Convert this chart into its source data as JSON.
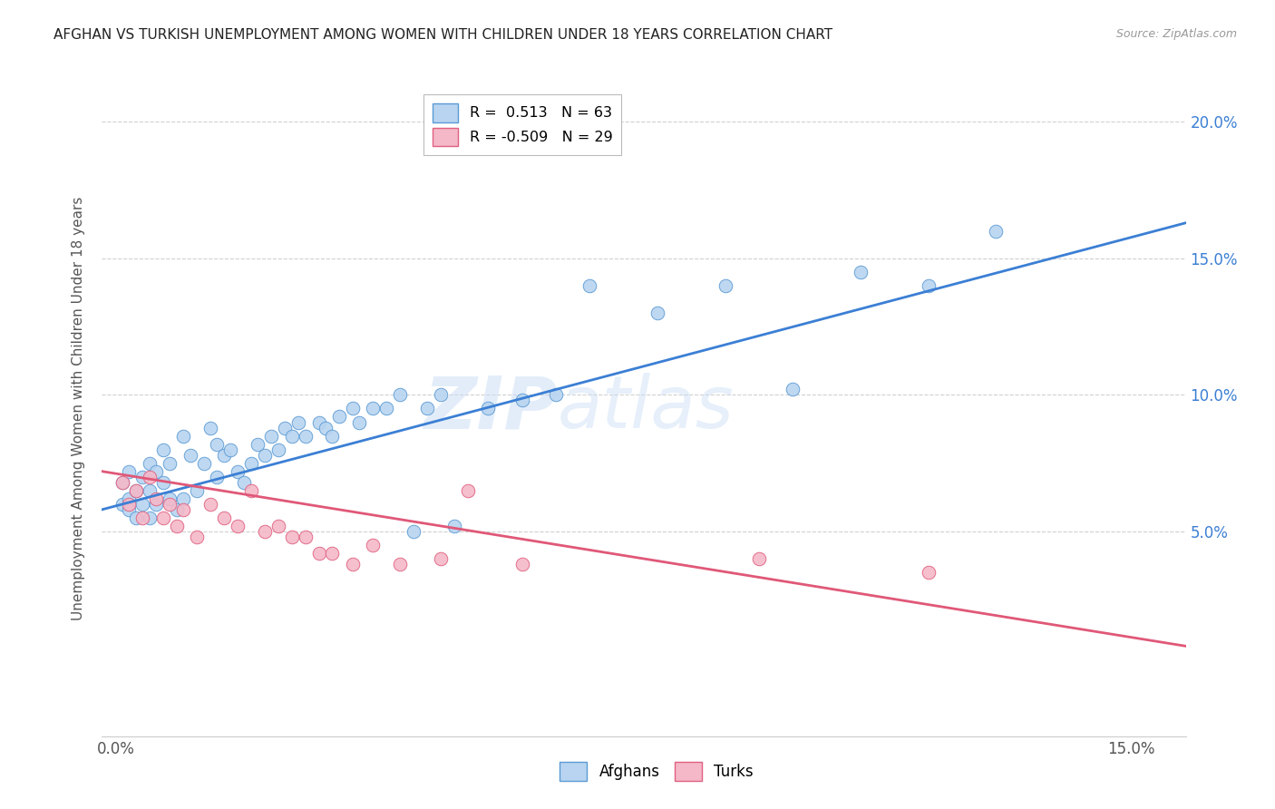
{
  "title": "AFGHAN VS TURKISH UNEMPLOYMENT AMONG WOMEN WITH CHILDREN UNDER 18 YEARS CORRELATION CHART",
  "source": "Source: ZipAtlas.com",
  "ylabel": "Unemployment Among Women with Children Under 18 years",
  "xlim": [
    -0.002,
    0.158
  ],
  "ylim": [
    -0.025,
    0.215
  ],
  "ytick_positions": [
    0.05,
    0.1,
    0.15,
    0.2
  ],
  "ytick_labels": [
    "5.0%",
    "10.0%",
    "15.0%",
    "20.0%"
  ],
  "xtick_positions": [
    0.0,
    0.15
  ],
  "xtick_labels": [
    "0.0%",
    "15.0%"
  ],
  "watermark_line1": "ZIP",
  "watermark_line2": "atlas",
  "legend_r_afghan": "R =  0.513",
  "legend_n_afghan": "N = 63",
  "legend_r_turk": "R = -0.509",
  "legend_n_turk": "N = 29",
  "afghan_color": "#b8d4f0",
  "afghan_edge_color": "#5b9bd5",
  "afghan_line_color": "#3b7fd4",
  "turk_color": "#f4b8c8",
  "turk_edge_color": "#e06080",
  "turk_line_color": "#e05878",
  "background_color": "#ffffff",
  "grid_color": "#d0d0d0",
  "afghan_x": [
    0.001,
    0.001,
    0.002,
    0.002,
    0.002,
    0.003,
    0.003,
    0.004,
    0.004,
    0.005,
    0.005,
    0.005,
    0.006,
    0.006,
    0.007,
    0.007,
    0.008,
    0.008,
    0.009,
    0.01,
    0.01,
    0.011,
    0.012,
    0.013,
    0.014,
    0.015,
    0.015,
    0.016,
    0.017,
    0.018,
    0.019,
    0.02,
    0.021,
    0.022,
    0.023,
    0.024,
    0.025,
    0.026,
    0.027,
    0.028,
    0.03,
    0.031,
    0.032,
    0.033,
    0.035,
    0.036,
    0.038,
    0.04,
    0.042,
    0.044,
    0.046,
    0.048,
    0.05,
    0.055,
    0.06,
    0.065,
    0.07,
    0.08,
    0.09,
    0.1,
    0.11,
    0.12,
    0.13
  ],
  "afghan_y": [
    0.06,
    0.068,
    0.062,
    0.058,
    0.072,
    0.065,
    0.055,
    0.07,
    0.06,
    0.075,
    0.065,
    0.055,
    0.072,
    0.06,
    0.08,
    0.068,
    0.075,
    0.062,
    0.058,
    0.085,
    0.062,
    0.078,
    0.065,
    0.075,
    0.088,
    0.082,
    0.07,
    0.078,
    0.08,
    0.072,
    0.068,
    0.075,
    0.082,
    0.078,
    0.085,
    0.08,
    0.088,
    0.085,
    0.09,
    0.085,
    0.09,
    0.088,
    0.085,
    0.092,
    0.095,
    0.09,
    0.095,
    0.095,
    0.1,
    0.05,
    0.095,
    0.1,
    0.052,
    0.095,
    0.098,
    0.1,
    0.14,
    0.13,
    0.14,
    0.102,
    0.145,
    0.14,
    0.16
  ],
  "turk_x": [
    0.001,
    0.002,
    0.003,
    0.004,
    0.005,
    0.006,
    0.007,
    0.008,
    0.009,
    0.01,
    0.012,
    0.014,
    0.016,
    0.018,
    0.02,
    0.022,
    0.024,
    0.026,
    0.028,
    0.03,
    0.032,
    0.035,
    0.038,
    0.042,
    0.048,
    0.052,
    0.06,
    0.095,
    0.12
  ],
  "turk_y": [
    0.068,
    0.06,
    0.065,
    0.055,
    0.07,
    0.062,
    0.055,
    0.06,
    0.052,
    0.058,
    0.048,
    0.06,
    0.055,
    0.052,
    0.065,
    0.05,
    0.052,
    0.048,
    0.048,
    0.042,
    0.042,
    0.038,
    0.045,
    0.038,
    0.04,
    0.065,
    0.038,
    0.04,
    0.035
  ],
  "afghan_line_x": [
    -0.002,
    0.158
  ],
  "afghan_line_y": [
    0.058,
    0.163
  ],
  "turk_line_x": [
    -0.002,
    0.158
  ],
  "turk_line_y": [
    0.072,
    0.008
  ]
}
